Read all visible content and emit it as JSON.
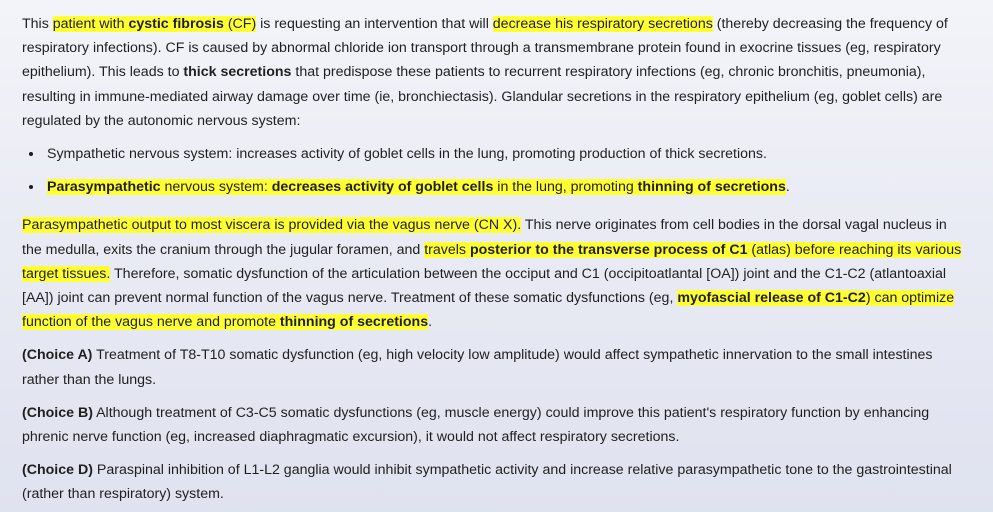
{
  "para1": {
    "t01": "This ",
    "h01": "patient with ",
    "h01b": "cystic fibrosis",
    "h01c": " (CF)",
    "t02": " is requesting an intervention that will ",
    "h02": "decrease his respiratory secretions",
    "t03": " (thereby decreasing the frequency of respiratory infections).  CF is caused by abnormal chloride ion transport through a transmembrane protein found in exocrine tissues (eg, respiratory epithelium).  This leads to ",
    "b01": "thick secretions",
    "t04": " that predispose these patients to recurrent respiratory infections (eg, chronic bronchitis, pneumonia), resulting in immune-mediated airway damage over time (ie, bronchiectasis).  Glandular secretions in the respiratory epithelium (eg, goblet cells) are regulated by the autonomic nervous system:"
  },
  "bullets": {
    "b1": "Sympathetic nervous system:  increases activity of goblet cells in the lung, promoting production of thick secretions.",
    "b2_bold1": "Parasympathetic",
    "b2_t1": " nervous system:  ",
    "b2_bold2": "decreases activity of goblet cells",
    "b2_t2": " in the lung, promoting ",
    "b2_bold3": "thinning of secretions",
    "b2_end": "."
  },
  "para2": {
    "h1": "Parasympathetic output",
    "h2": " to most viscera is provided via the vagus nerve (CN X).",
    "t1": "  This nerve originates from cell bodies in the dorsal vagal nucleus in the medulla, exits the cranium through the jugular foramen, and ",
    "h3": "travels ",
    "h3b": "posterior to the transverse process of C1",
    "h3c": " (atlas) before reaching its various target tissues.",
    "t2": "  Therefore, somatic dysfunction of the articulation between the occiput and C1 (occipitoatlantal [OA]) joint and the C1-C2 (atlantoaxial [AA]) joint can prevent normal function of the vagus nerve.  Treatment of these somatic dysfunctions (eg, ",
    "h4b": "myofascial release of C1-C2",
    "h4": ") can optimize function of the vagus nerve and promote ",
    "h4b2": "thinning of secretions",
    "end": "."
  },
  "choices": [
    {
      "label": "(Choice A)",
      "text": "  Treatment of T8-T10 somatic dysfunction (eg, high velocity low amplitude) would affect sympathetic innervation to the small intestines rather than the lungs."
    },
    {
      "label": "(Choice B)",
      "text": "  Although treatment of C3-C5 somatic dysfunctions (eg, muscle energy) could improve this patient's respiratory function by enhancing phrenic nerve function (eg, increased diaphragmatic excursion), it would not affect respiratory secretions."
    },
    {
      "label": "(Choice D)",
      "text": "  Paraspinal inhibition of L1-L2 ganglia would inhibit sympathetic activity and increase relative parasympathetic tone to the gastrointestinal (rather than respiratory) system."
    }
  ],
  "colors": {
    "highlight": "#ffff33",
    "text": "#1f1f1f"
  }
}
